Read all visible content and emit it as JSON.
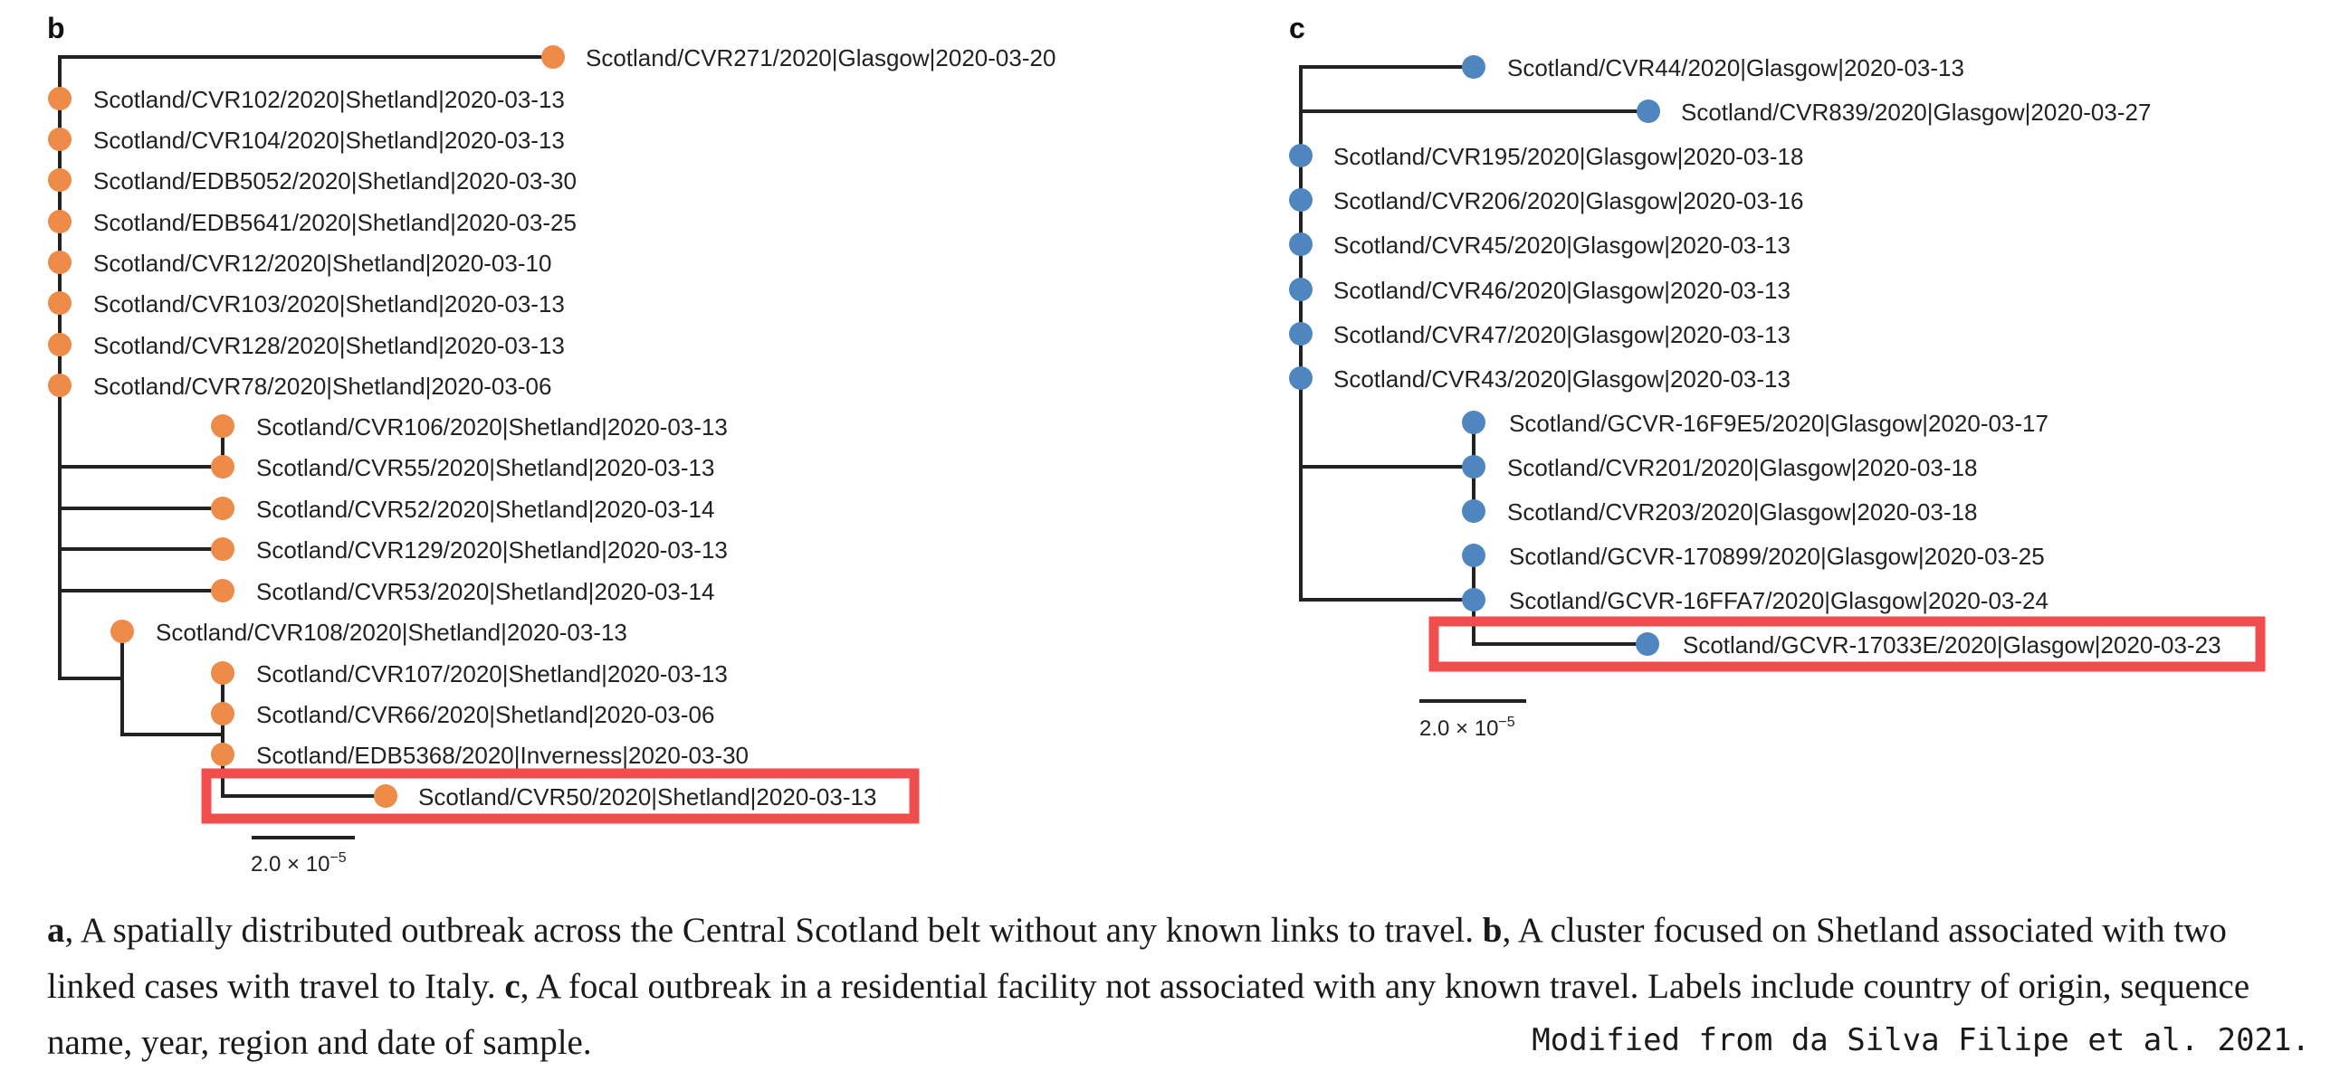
{
  "colors": {
    "panel_b_tip": "#ee8b49",
    "panel_c_tip": "#4f86bf",
    "branch": "#222222",
    "highlight": "#f04e4e"
  },
  "panel_b": {
    "letter": "b",
    "scale_label": "2.0 × 10",
    "scale_exponent": "−5",
    "tips": [
      {
        "label": "Scotland/CVR271/2020|Glasgow|2020-03-20"
      },
      {
        "label": "Scotland/CVR102/2020|Shetland|2020-03-13"
      },
      {
        "label": "Scotland/CVR104/2020|Shetland|2020-03-13"
      },
      {
        "label": "Scotland/EDB5052/2020|Shetland|2020-03-30"
      },
      {
        "label": "Scotland/EDB5641/2020|Shetland|2020-03-25"
      },
      {
        "label": "Scotland/CVR12/2020|Shetland|2020-03-10"
      },
      {
        "label": "Scotland/CVR103/2020|Shetland|2020-03-13"
      },
      {
        "label": "Scotland/CVR128/2020|Shetland|2020-03-13"
      },
      {
        "label": "Scotland/CVR78/2020|Shetland|2020-03-06"
      },
      {
        "label": "Scotland/CVR106/2020|Shetland|2020-03-13"
      },
      {
        "label": "Scotland/CVR55/2020|Shetland|2020-03-13"
      },
      {
        "label": "Scotland/CVR52/2020|Shetland|2020-03-14"
      },
      {
        "label": "Scotland/CVR129/2020|Shetland|2020-03-13"
      },
      {
        "label": "Scotland/CVR53/2020|Shetland|2020-03-14"
      },
      {
        "label": "Scotland/CVR108/2020|Shetland|2020-03-13"
      },
      {
        "label": "Scotland/CVR107/2020|Shetland|2020-03-13"
      },
      {
        "label": "Scotland/CVR66/2020|Shetland|2020-03-06"
      },
      {
        "label": "Scotland/EDB5368/2020|Inverness|2020-03-30"
      },
      {
        "label": "Scotland/CVR50/2020|Shetland|2020-03-13",
        "highlighted": true
      }
    ]
  },
  "panel_c": {
    "letter": "c",
    "scale_label": "2.0 × 10",
    "scale_exponent": "−5",
    "tips": [
      {
        "label": "Scotland/CVR44/2020|Glasgow|2020-03-13"
      },
      {
        "label": "Scotland/CVR839/2020|Glasgow|2020-03-27"
      },
      {
        "label": "Scotland/CVR195/2020|Glasgow|2020-03-18"
      },
      {
        "label": "Scotland/CVR206/2020|Glasgow|2020-03-16"
      },
      {
        "label": "Scotland/CVR45/2020|Glasgow|2020-03-13"
      },
      {
        "label": "Scotland/CVR46/2020|Glasgow|2020-03-13"
      },
      {
        "label": "Scotland/CVR47/2020|Glasgow|2020-03-13"
      },
      {
        "label": "Scotland/CVR43/2020|Glasgow|2020-03-13"
      },
      {
        "label": "Scotland/GCVR-16F9E5/2020|Glasgow|2020-03-17"
      },
      {
        "label": "Scotland/CVR201/2020|Glasgow|2020-03-18"
      },
      {
        "label": "Scotland/CVR203/2020|Glasgow|2020-03-18"
      },
      {
        "label": "Scotland/GCVR-170899/2020|Glasgow|2020-03-25"
      },
      {
        "label": "Scotland/GCVR-16FFA7/2020|Glasgow|2020-03-24"
      },
      {
        "label": "Scotland/GCVR-17033E/2020|Glasgow|2020-03-23",
        "highlighted": true
      }
    ]
  },
  "caption": {
    "a_letter": "a",
    "a_text": ", A spatially distributed outbreak across the Central Scotland belt without any known links to travel. ",
    "b_letter": "b",
    "b_text": ", A cluster focused on Shetland associated with two linked cases with travel to Italy. ",
    "c_letter": "c",
    "c_text": ", A focal outbreak in a residential facility not associated with any known travel. Labels include country of origin, sequence name, year, region and date of sample."
  },
  "credit": "Modified from da Silva Filipe et al. 2021."
}
